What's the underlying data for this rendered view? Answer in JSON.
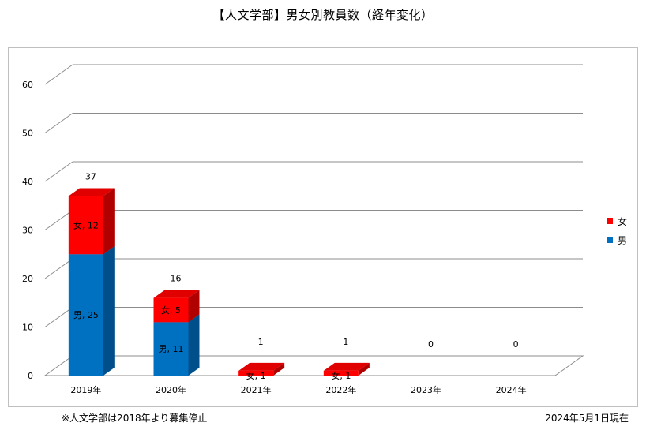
{
  "title": "【人文学部】男女別教員数（経年変化）",
  "footer": {
    "note": "※人文学部は2018年より募集停止",
    "date": "2024年5月1日現在"
  },
  "colors": {
    "female": "#ff0000",
    "female_top": "#e00000",
    "female_side": "#b00000",
    "male": "#0070c0",
    "male_top": "#2f8fd8",
    "male_side": "#004f8a",
    "grid": "#8c8c8c"
  },
  "chart_data": {
    "type": "bar",
    "stacked": true,
    "three_d": true,
    "categories": [
      "2019年",
      "2020年",
      "2021年",
      "2022年",
      "2023年",
      "2024年"
    ],
    "series": [
      {
        "name": "男",
        "values": [
          25,
          11,
          0,
          0,
          0,
          0
        ]
      },
      {
        "name": "女",
        "values": [
          12,
          5,
          1,
          1,
          0,
          0
        ]
      }
    ],
    "totals": [
      37,
      16,
      1,
      1,
      0,
      0
    ],
    "y_ticks": [
      "0",
      "10",
      "20",
      "30",
      "40",
      "50",
      "60"
    ],
    "ylim": [
      0,
      60
    ],
    "grid": true,
    "legend_position": "right"
  }
}
